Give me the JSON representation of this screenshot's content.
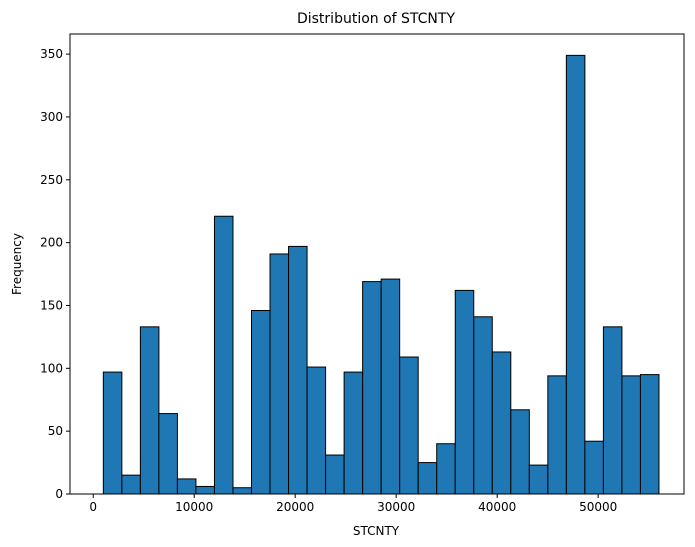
{
  "chart_data": {
    "type": "bar",
    "title": "Distribution of STCNTY",
    "xlabel": "STCNTY",
    "ylabel": "Frequency",
    "xlim": [
      -2300,
      58500
    ],
    "ylim": [
      0,
      366
    ],
    "xticks": [
      0,
      10000,
      20000,
      30000,
      40000,
      50000
    ],
    "xtick_labels": [
      "0",
      "10000",
      "20000",
      "30000",
      "40000",
      "50000"
    ],
    "yticks": [
      0,
      50,
      100,
      150,
      200,
      250,
      300,
      350
    ],
    "ytick_labels": [
      "0",
      "50",
      "100",
      "150",
      "200",
      "250",
      "300",
      "350"
    ],
    "bin_start": 1001,
    "bin_width": 1834,
    "values": [
      97,
      15,
      133,
      64,
      12,
      6,
      221,
      5,
      146,
      191,
      197,
      101,
      31,
      97,
      169,
      171,
      109,
      25,
      40,
      162,
      141,
      113,
      67,
      23,
      94,
      349,
      42,
      133,
      94,
      95
    ],
    "grid": false,
    "legend": false,
    "colors": {
      "bar_fill": "#1f77b4",
      "bar_edge": "#000000"
    }
  }
}
